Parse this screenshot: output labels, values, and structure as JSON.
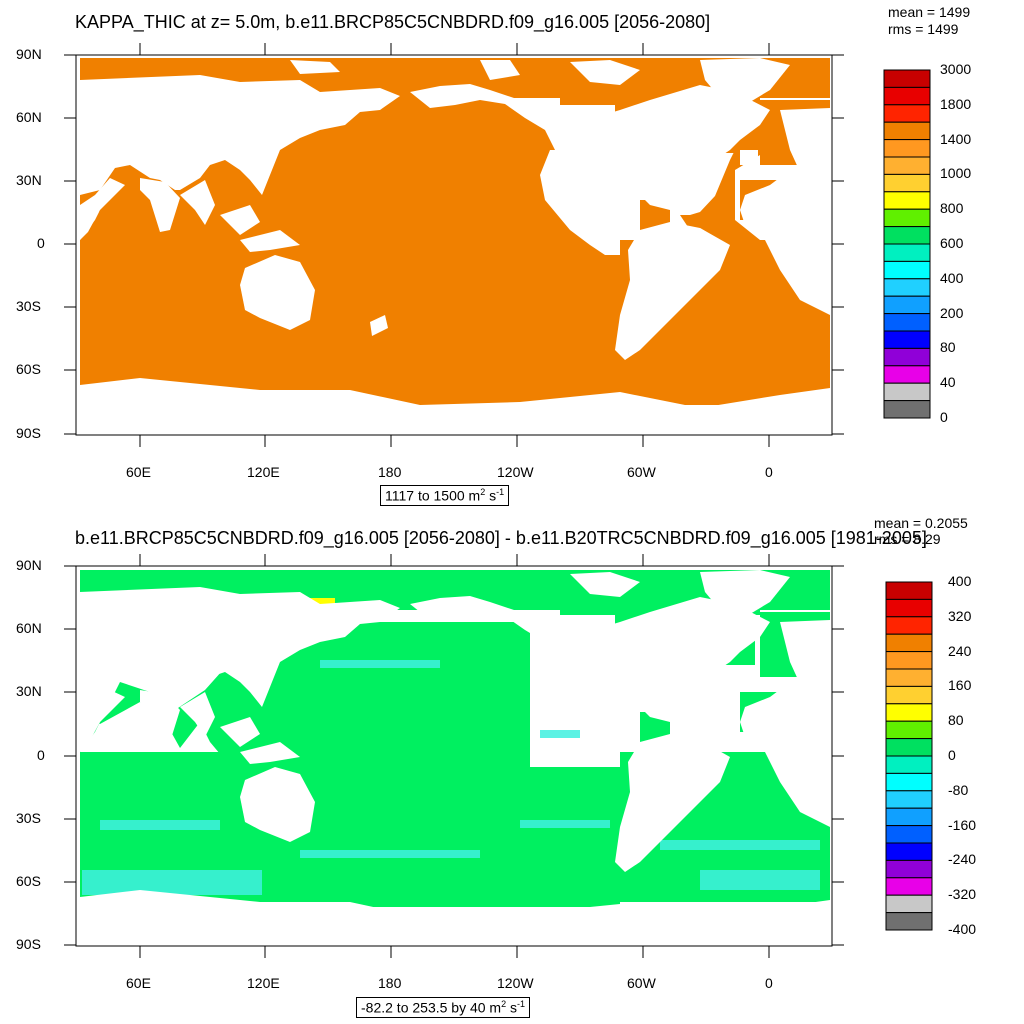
{
  "panels": [
    {
      "title": "KAPPA_THIC at z=   5.0m, b.e11.BRCP85C5CNBDRD.f09_g16.005 [2056-2080]",
      "stats": [
        "mean = 1499",
        "rms = 1499"
      ],
      "lat_ticks": [
        "90N",
        "60N",
        "30N",
        "0",
        "30S",
        "60S",
        "90S"
      ],
      "lon_ticks": [
        "60E",
        "120E",
        "180",
        "120W",
        "60W",
        "0"
      ],
      "range": {
        "text": "1117 to 1500 m",
        "exp1": "2",
        "mid": " s",
        "exp2": "-1"
      },
      "legend": {
        "labels": [
          "3000",
          "1800",
          "1400",
          "1000",
          "800",
          "600",
          "400",
          "200",
          "80",
          "40",
          "0"
        ],
        "colors": [
          "#c80000",
          "#e80000",
          "#ff2400",
          "#f08000",
          "#ff9820",
          "#ffb030",
          "#ffd030",
          "#ffff00",
          "#60f000",
          "#00e060",
          "#00f0c0",
          "#00ffff",
          "#20d0ff",
          "#10a0ff",
          "#0060ff",
          "#0000ff",
          "#9000d8",
          "#e800e8",
          "#c8c8c8",
          "#707070"
        ]
      }
    },
    {
      "title": "b.e11.BRCP85C5CNBDRD.f09_g16.005 [2056-2080] - b.e11.B20TRC5CNBDRD.f09_g16.005 [1981-2005]",
      "stats": [
        "mean = 0.2055",
        "rms = 8.29"
      ],
      "lat_ticks": [
        "90N",
        "60N",
        "30N",
        "0",
        "30S",
        "60S",
        "90S"
      ],
      "lon_ticks": [
        "60E",
        "120E",
        "180",
        "120W",
        "60W",
        "0"
      ],
      "range": {
        "text": "-82.2 to 253.5 by 40 m",
        "exp1": "2",
        "mid": " s",
        "exp2": "-1"
      },
      "legend": {
        "labels": [
          "400",
          "320",
          "240",
          "160",
          "80",
          "0",
          "-80",
          "-160",
          "-240",
          "-320",
          "-400"
        ],
        "colors": [
          "#c80000",
          "#e80000",
          "#ff2400",
          "#f08000",
          "#ff9820",
          "#ffb030",
          "#ffd030",
          "#ffff00",
          "#60f000",
          "#00e060",
          "#00f0c0",
          "#00ffff",
          "#20d0ff",
          "#10a0ff",
          "#0060ff",
          "#0000ff",
          "#9000d8",
          "#e800e8",
          "#c8c8c8",
          "#707070"
        ]
      }
    }
  ],
  "colors": {
    "ocean_top": "#f08000",
    "ocean_bottom": "#00f060",
    "ocean_bottom_patch": "#40f0e0",
    "land": "#ffffff"
  }
}
